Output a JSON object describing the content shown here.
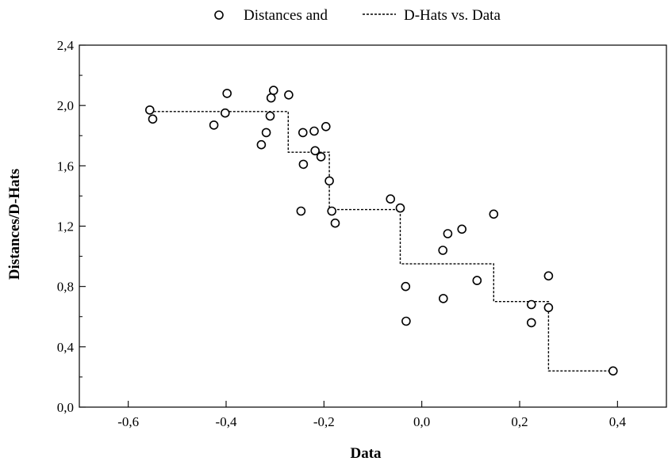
{
  "chart_data": {
    "type": "scatter",
    "title": "",
    "xlabel": "Data",
    "ylabel": "Distances/D-Hats",
    "xlim": [
      -0.7,
      0.5
    ],
    "ylim": [
      0.0,
      2.4
    ],
    "x_ticks": [
      -0.6,
      -0.4,
      -0.2,
      0.0,
      0.2,
      0.4
    ],
    "x_tick_labels": [
      "-0,6",
      "-0,4",
      "-0,2",
      "0,0",
      "0,2",
      "0,4"
    ],
    "y_ticks": [
      0.0,
      0.4,
      0.8,
      1.2,
      1.6,
      2.0,
      2.4
    ],
    "y_tick_labels": [
      "0,0",
      "0,4",
      "0,8",
      "1,2",
      "1,6",
      "2,0",
      "2,4"
    ],
    "grid": false,
    "legend_position": "top-center",
    "colors": {
      "marker": "#000000",
      "line": "#000000",
      "frame": "#000000"
    },
    "series": [
      {
        "name": "Distances and",
        "kind": "points",
        "marker": "open-circle",
        "points": [
          {
            "x": -0.556,
            "y": 1.97
          },
          {
            "x": -0.55,
            "y": 1.91
          },
          {
            "x": -0.425,
            "y": 1.87
          },
          {
            "x": -0.402,
            "y": 1.95
          },
          {
            "x": -0.398,
            "y": 2.08
          },
          {
            "x": -0.328,
            "y": 1.74
          },
          {
            "x": -0.318,
            "y": 1.82
          },
          {
            "x": -0.31,
            "y": 1.93
          },
          {
            "x": -0.308,
            "y": 2.05
          },
          {
            "x": -0.303,
            "y": 2.1
          },
          {
            "x": -0.272,
            "y": 2.07
          },
          {
            "x": -0.247,
            "y": 1.3
          },
          {
            "x": -0.243,
            "y": 1.82
          },
          {
            "x": -0.242,
            "y": 1.61
          },
          {
            "x": -0.22,
            "y": 1.83
          },
          {
            "x": -0.218,
            "y": 1.7
          },
          {
            "x": -0.206,
            "y": 1.66
          },
          {
            "x": -0.196,
            "y": 1.86
          },
          {
            "x": -0.189,
            "y": 1.5
          },
          {
            "x": -0.184,
            "y": 1.3
          },
          {
            "x": -0.177,
            "y": 1.22
          },
          {
            "x": -0.064,
            "y": 1.38
          },
          {
            "x": -0.044,
            "y": 1.32
          },
          {
            "x": -0.033,
            "y": 0.8
          },
          {
            "x": -0.032,
            "y": 0.57
          },
          {
            "x": 0.043,
            "y": 1.04
          },
          {
            "x": 0.044,
            "y": 0.72
          },
          {
            "x": 0.053,
            "y": 1.15
          },
          {
            "x": 0.082,
            "y": 1.18
          },
          {
            "x": 0.113,
            "y": 0.84
          },
          {
            "x": 0.147,
            "y": 1.28
          },
          {
            "x": 0.224,
            "y": 0.68
          },
          {
            "x": 0.224,
            "y": 0.56
          },
          {
            "x": 0.259,
            "y": 0.87
          },
          {
            "x": 0.259,
            "y": 0.66
          },
          {
            "x": 0.391,
            "y": 0.24
          }
        ]
      },
      {
        "name": "D-Hats vs. Data",
        "kind": "step",
        "line_style": "dashed",
        "points": [
          {
            "x": -0.556,
            "y": 1.96
          },
          {
            "x": -0.273,
            "y": 1.96
          },
          {
            "x": -0.273,
            "y": 1.69
          },
          {
            "x": -0.189,
            "y": 1.69
          },
          {
            "x": -0.189,
            "y": 1.31
          },
          {
            "x": -0.044,
            "y": 1.31
          },
          {
            "x": -0.044,
            "y": 0.95
          },
          {
            "x": 0.147,
            "y": 0.95
          },
          {
            "x": 0.147,
            "y": 0.7
          },
          {
            "x": 0.259,
            "y": 0.7
          },
          {
            "x": 0.259,
            "y": 0.24
          },
          {
            "x": 0.391,
            "y": 0.24
          }
        ]
      }
    ]
  }
}
